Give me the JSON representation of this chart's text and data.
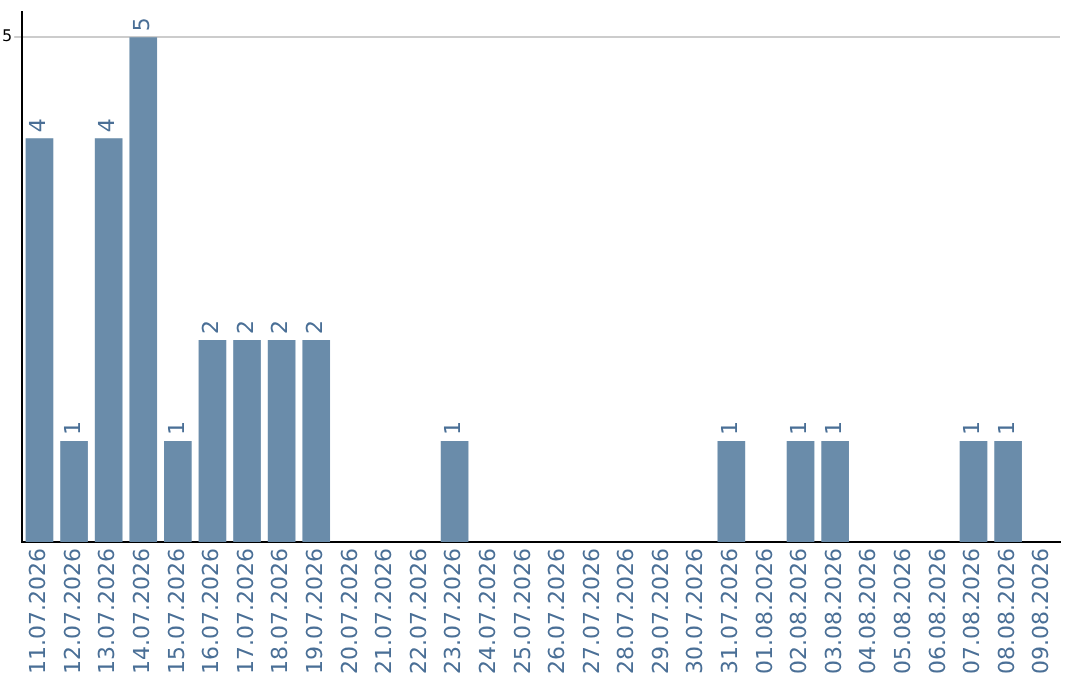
{
  "chart_data": {
    "type": "bar",
    "categories": [
      "11.07.2026",
      "12.07.2026",
      "13.07.2026",
      "14.07.2026",
      "15.07.2026",
      "16.07.2026",
      "17.07.2026",
      "18.07.2026",
      "19.07.2026",
      "20.07.2026",
      "21.07.2026",
      "22.07.2026",
      "23.07.2026",
      "24.07.2026",
      "25.07.2026",
      "26.07.2026",
      "27.07.2026",
      "28.07.2026",
      "29.07.2026",
      "30.07.2026",
      "31.07.2026",
      "01.08.2026",
      "02.08.2026",
      "03.08.2026",
      "04.08.2026",
      "05.08.2026",
      "06.08.2026",
      "07.08.2026",
      "08.08.2026",
      "09.08.2026"
    ],
    "series": [
      {
        "color": "#6a8caa",
        "values": [
          4,
          1,
          4,
          5,
          1,
          2,
          2,
          2,
          2,
          0,
          0,
          0,
          1,
          0,
          0,
          0,
          0,
          0,
          0,
          0,
          1,
          0,
          1,
          1,
          0,
          0,
          0,
          1,
          1,
          0
        ],
        "value_labels": [
          "4",
          "1",
          "4",
          "5",
          "1",
          "2",
          "2",
          "2",
          "2",
          null,
          null,
          null,
          "1",
          null,
          null,
          null,
          null,
          null,
          null,
          null,
          "1",
          null,
          "1",
          "1",
          null,
          null,
          null,
          "1",
          "1",
          null
        ]
      }
    ],
    "ylim": [
      0,
      5.25
    ],
    "yticks": [
      5
    ],
    "grid": "y"
  }
}
